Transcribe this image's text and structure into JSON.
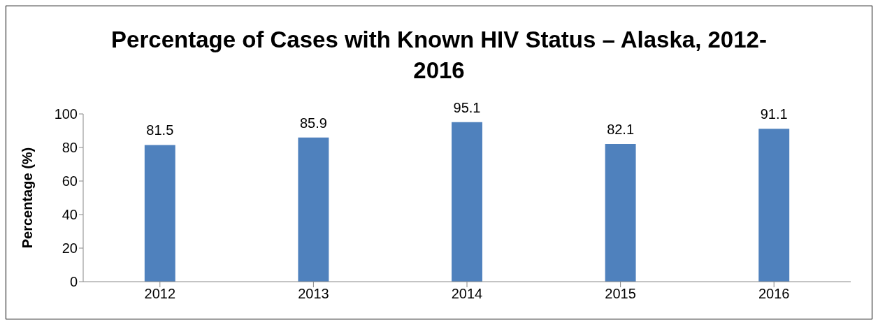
{
  "chart_data": {
    "type": "bar",
    "title": "Percentage of Cases with Known HIV Status – Alaska, 2012-2016",
    "ylabel": "Percentage (%)",
    "categories": [
      "2012",
      "2013",
      "2014",
      "2015",
      "2016"
    ],
    "values": [
      81.5,
      85.9,
      95.1,
      82.1,
      91.1
    ],
    "color": "#4f81bd",
    "ylim": [
      0,
      100
    ],
    "yticks": [
      0,
      20,
      40,
      60,
      80,
      100
    ],
    "data_labels": true
  }
}
